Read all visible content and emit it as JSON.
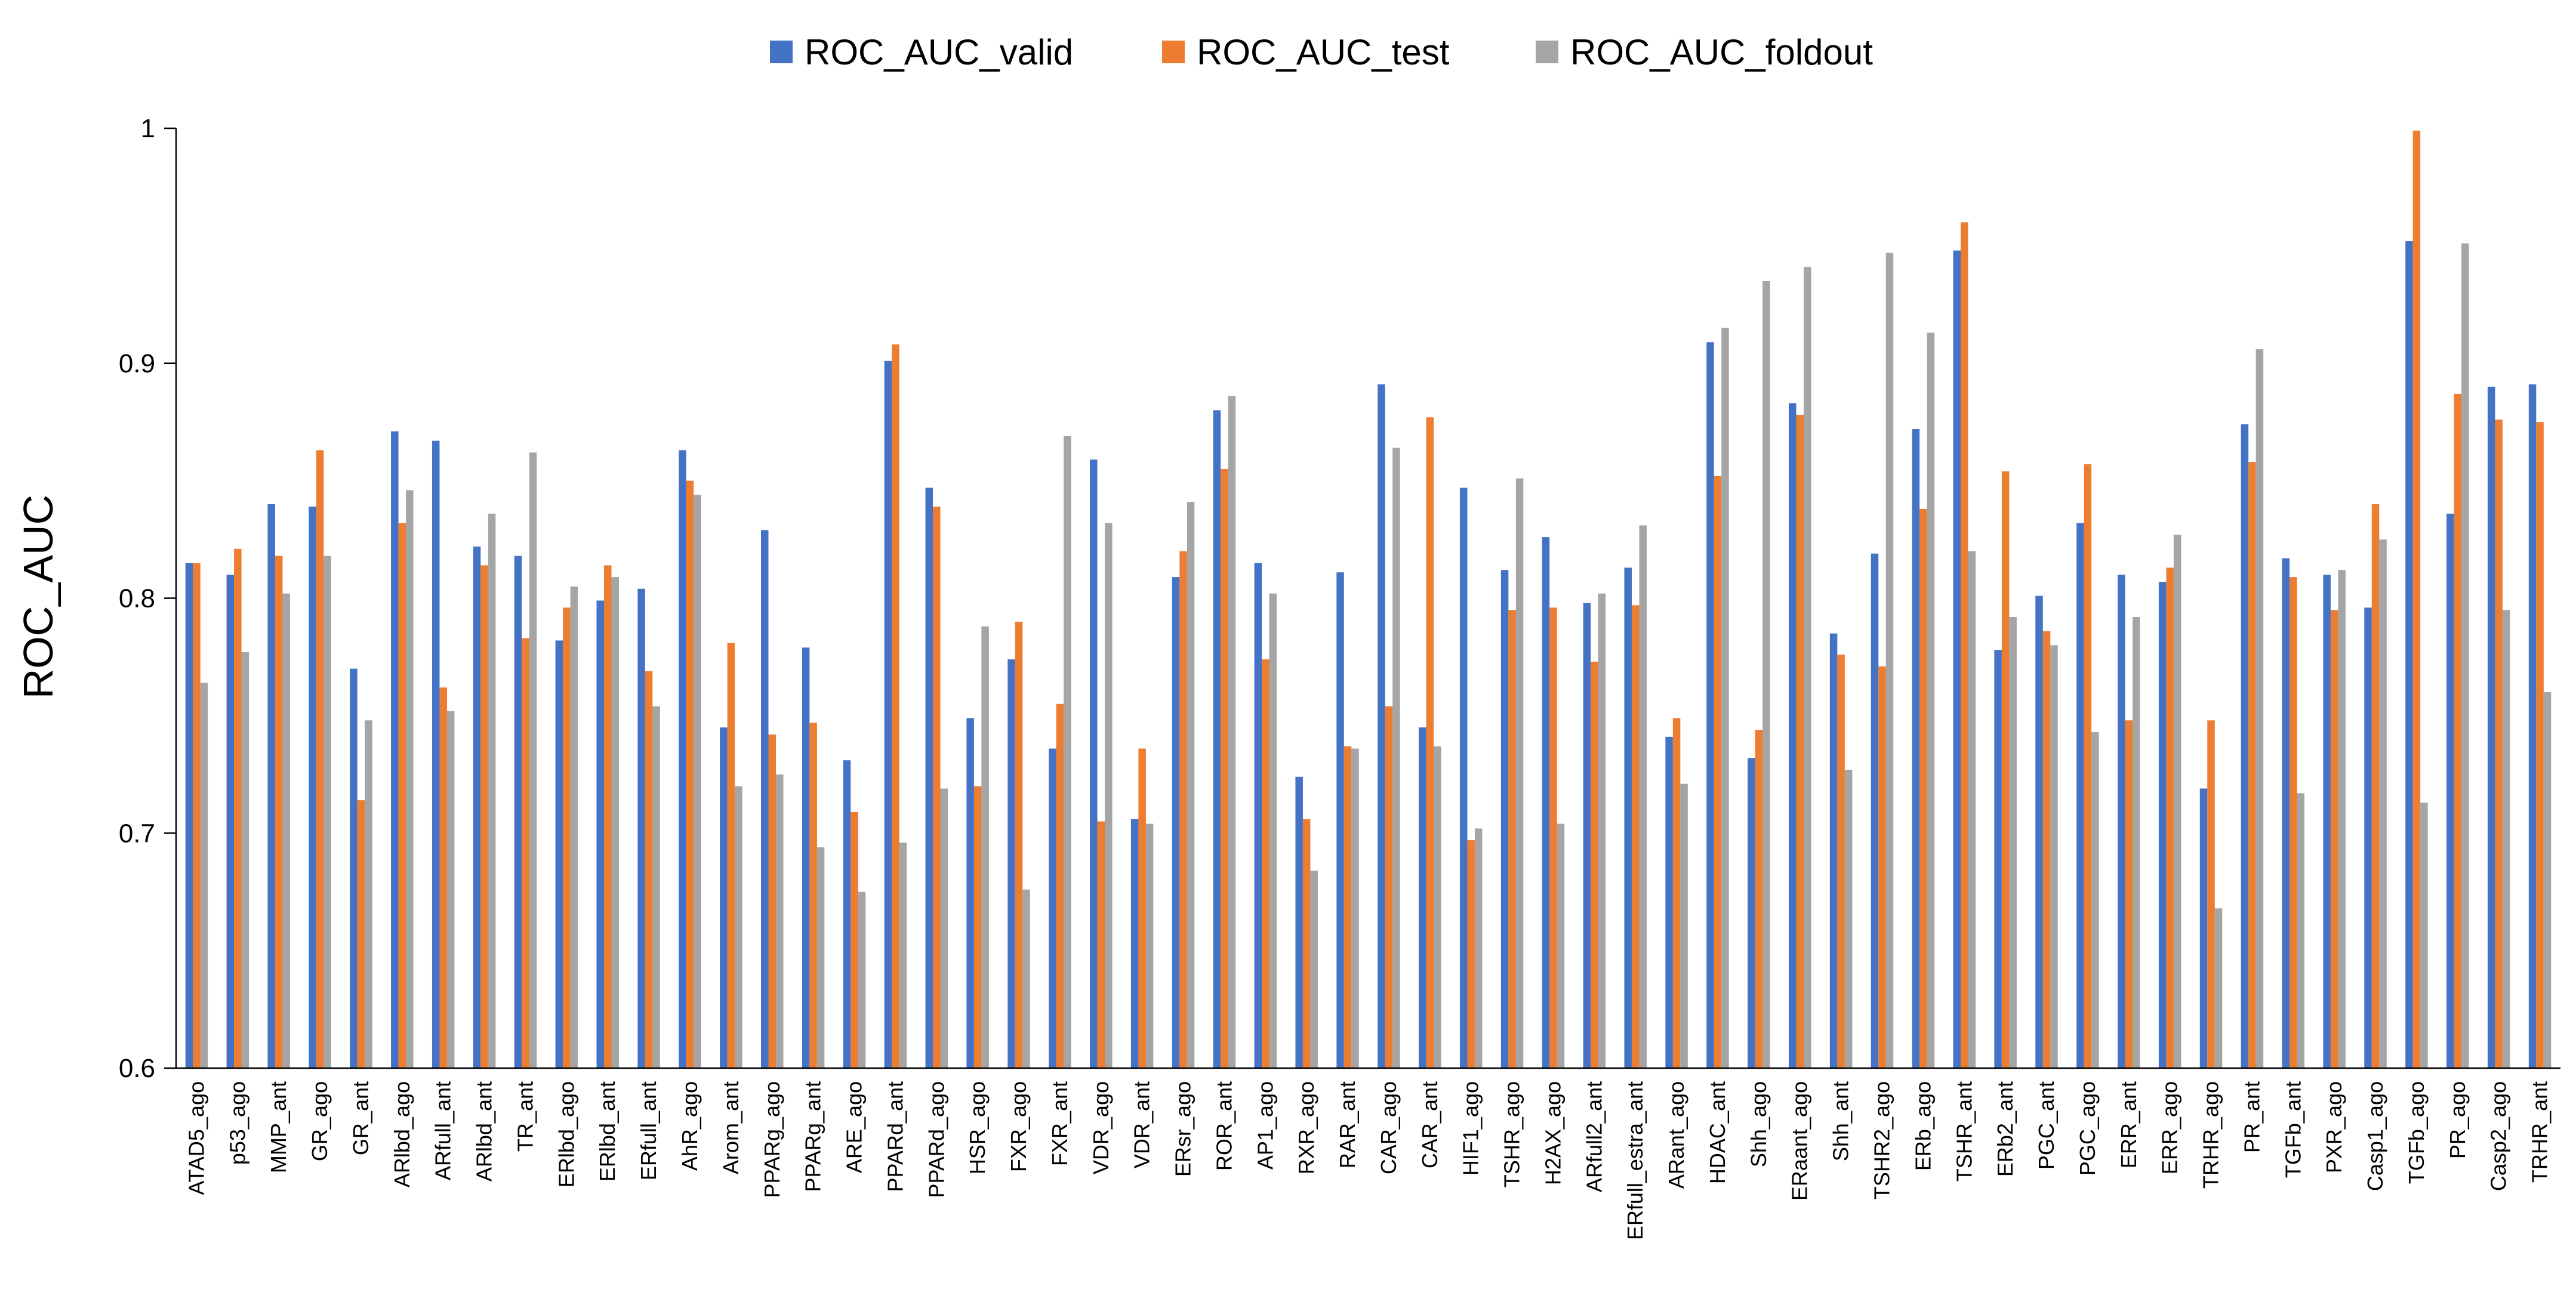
{
  "chart_data": {
    "type": "bar",
    "title": "",
    "xlabel": "",
    "ylabel": "ROC_AUC",
    "ylim": [
      0.6,
      1.0
    ],
    "yticks": [
      "0.6",
      "0.7",
      "0.8",
      "0.9",
      "1"
    ],
    "legend_position": "top-center",
    "grid": false,
    "categories": [
      "ATAD5_ago",
      "p53_ago",
      "MMP_ant",
      "GR_ago",
      "GR_ant",
      "ARlbd_ago",
      "ARfull_ant",
      "ARlbd_ant",
      "TR_ant",
      "ERlbd_ago",
      "ERlbd_ant",
      "ERfull_ant",
      "AhR_ago",
      "Arom_ant",
      "PPARg_ago",
      "PPARg_ant",
      "ARE_ago",
      "PPARd_ant",
      "PPARd_ago",
      "HSR_ago",
      "FXR_ago",
      "FXR_ant",
      "VDR_ago",
      "VDR_ant",
      "ERsr_ago",
      "ROR_ant",
      "AP1_ago",
      "RXR_ago",
      "RAR_ant",
      "CAR_ago",
      "CAR_ant",
      "HIF1_ago",
      "TSHR_ago",
      "H2AX_ago",
      "ARfull2_ant",
      "ERfull_estra_ant",
      "ARant_ago",
      "HDAC_ant",
      "Shh_ago",
      "ERaant_ago",
      "Shh_ant",
      "TSHR2_ago",
      "ERb_ago",
      "TSHR_ant",
      "ERb2_ant",
      "PGC_ant",
      "PGC_ago",
      "ERR_ant",
      "ERR_ago",
      "TRHR_ago",
      "PR_ant",
      "TGFb_ant",
      "PXR_ago",
      "Casp1_ago",
      "TGFb_ago",
      "PR_ago",
      "Casp2_ago",
      "TRHR_ant"
    ],
    "series": [
      {
        "name": "ROC_AUC_valid",
        "color": "#4472C4",
        "values": [
          0.815,
          0.81,
          0.84,
          0.839,
          0.77,
          0.871,
          0.867,
          0.822,
          0.818,
          0.782,
          0.799,
          0.804,
          0.863,
          0.745,
          0.829,
          0.779,
          0.731,
          0.901,
          0.847,
          0.749,
          0.774,
          0.736,
          0.859,
          0.706,
          0.809,
          0.88,
          0.815,
          0.724,
          0.811,
          0.891,
          0.745,
          0.847,
          0.812,
          0.826,
          0.798,
          0.813,
          0.741,
          0.909,
          0.732,
          0.883,
          0.785,
          0.819,
          0.872,
          0.948,
          0.778,
          0.801,
          0.832,
          0.81,
          0.807,
          0.719,
          0.874,
          0.817,
          0.81,
          0.796,
          0.952,
          0.836,
          0.89,
          0.891
        ]
      },
      {
        "name": "ROC_AUC_test",
        "color": "#ED7D31",
        "values": [
          0.815,
          0.821,
          0.818,
          0.863,
          0.714,
          0.832,
          0.762,
          0.814,
          0.783,
          0.796,
          0.814,
          0.769,
          0.85,
          0.781,
          0.742,
          0.747,
          0.709,
          0.908,
          0.839,
          0.72,
          0.79,
          0.755,
          0.705,
          0.736,
          0.82,
          0.855,
          0.774,
          0.706,
          0.737,
          0.754,
          0.877,
          0.697,
          0.795,
          0.796,
          0.773,
          0.797,
          0.749,
          0.852,
          0.744,
          0.878,
          0.776,
          0.771,
          0.838,
          0.96,
          0.854,
          0.786,
          0.857,
          0.748,
          0.813,
          0.748,
          0.858,
          0.809,
          0.795,
          0.84,
          0.999,
          0.887,
          0.876,
          0.875
        ]
      },
      {
        "name": "ROC_AUC_foldout",
        "color": "#A5A5A5",
        "values": [
          0.764,
          0.777,
          0.802,
          0.818,
          0.748,
          0.846,
          0.752,
          0.836,
          0.862,
          0.805,
          0.809,
          0.754,
          0.844,
          0.72,
          0.725,
          0.694,
          0.675,
          0.696,
          0.719,
          0.788,
          0.676,
          0.869,
          0.832,
          0.704,
          0.841,
          0.886,
          0.802,
          0.684,
          0.736,
          0.864,
          0.737,
          0.702,
          0.851,
          0.704,
          0.802,
          0.831,
          0.721,
          0.915,
          0.935,
          0.941,
          0.727,
          0.947,
          0.913,
          0.82,
          0.792,
          0.78,
          0.743,
          0.792,
          0.827,
          0.668,
          0.906,
          0.717,
          0.812,
          0.825,
          0.713,
          0.951,
          0.795,
          0.76
        ]
      }
    ]
  }
}
